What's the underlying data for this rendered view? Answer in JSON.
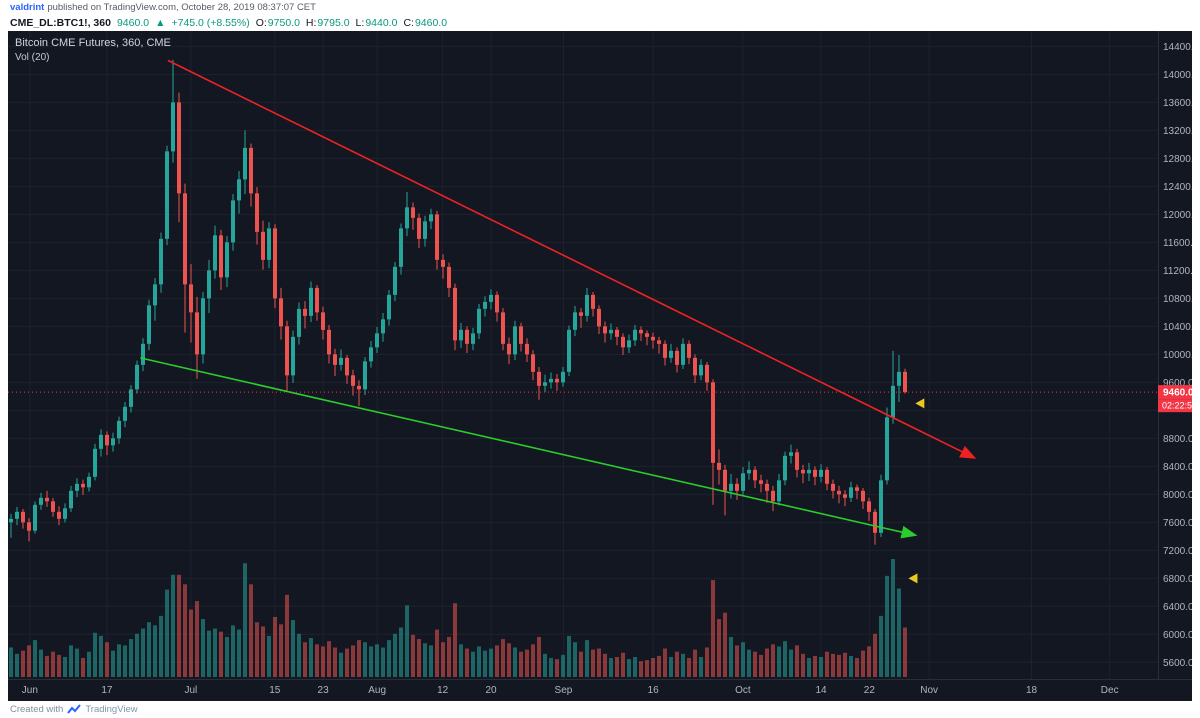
{
  "publish_bar": {
    "username": "valdrint",
    "text": "published on TradingView.com, October 28, 2019 08:37:07 CET"
  },
  "symbol_bar": {
    "symbol_interval": "CME_DL:BTC1!, 360",
    "last": "9460.0",
    "arrow": "▲",
    "change": "+745.0 (+8.55%)",
    "ohlc": [
      {
        "label": "O:",
        "value": "9750.0"
      },
      {
        "label": "H:",
        "value": "9795.0"
      },
      {
        "label": "L:",
        "value": "9440.0"
      },
      {
        "label": "C:",
        "value": "9460.0"
      }
    ]
  },
  "legend": {
    "title": "Bitcoin CME Futures, 360, CME",
    "indicator": "Vol (20)"
  },
  "price_axis": {
    "labels": [
      14400,
      14000,
      13600,
      13200,
      12800,
      12400,
      12000,
      11600,
      11200,
      10800,
      10400,
      10000,
      9600,
      9200,
      8800,
      8400,
      8000,
      7600,
      7200,
      6800,
      6400,
      6000,
      5600
    ],
    "last_price": "9460.0",
    "countdown": "02:22:56"
  },
  "time_axis": [
    {
      "label": "Jun",
      "f": 0.019
    },
    {
      "label": "17",
      "f": 0.086
    },
    {
      "label": "Jul",
      "f": 0.159
    },
    {
      "label": "15",
      "f": 0.232
    },
    {
      "label": "23",
      "f": 0.274
    },
    {
      "label": "Aug",
      "f": 0.321
    },
    {
      "label": "12",
      "f": 0.378
    },
    {
      "label": "20",
      "f": 0.42
    },
    {
      "label": "Sep",
      "f": 0.483
    },
    {
      "label": "16",
      "f": 0.561
    },
    {
      "label": "Oct",
      "f": 0.639
    },
    {
      "label": "14",
      "f": 0.707
    },
    {
      "label": "22",
      "f": 0.749
    },
    {
      "label": "Nov",
      "f": 0.801
    },
    {
      "label": "18",
      "f": 0.89
    },
    {
      "label": "Dec",
      "f": 0.958
    }
  ],
  "footer": {
    "created_with": "Created with",
    "brand": "TradingView"
  },
  "colors": {
    "up": "#26a69a",
    "down": "#ef5350",
    "vol_up": "rgba(38,166,154,0.55)",
    "vol_down": "rgba(239,83,80,0.55)",
    "bg": "#131722",
    "grid": "#1e222d",
    "axis_text": "#b2b5be",
    "axis_border": "#2a2e39",
    "last_bg": "#f23645",
    "marker": "#edc71e",
    "link": "#2962ff",
    "value_green": "#089981"
  },
  "chart_data": {
    "type": "candlestick",
    "symbol": "CME_DL:BTC1!",
    "title": "Bitcoin CME Futures, 360, CME",
    "interval_minutes": 360,
    "price_range": [
      5390,
      14620
    ],
    "grid_step": 400,
    "last_price": 9460,
    "volume_max": 112,
    "volume_label": "Vol (20)",
    "candles": [
      [
        7600,
        7720,
        7380,
        7650,
        28
      ],
      [
        7650,
        7820,
        7560,
        7750,
        22
      ],
      [
        7750,
        7790,
        7510,
        7600,
        25
      ],
      [
        7600,
        7660,
        7330,
        7480,
        30
      ],
      [
        7480,
        7900,
        7440,
        7850,
        35
      ],
      [
        7850,
        8020,
        7780,
        7950,
        26
      ],
      [
        7950,
        8050,
        7820,
        7900,
        20
      ],
      [
        7900,
        7950,
        7680,
        7750,
        24
      ],
      [
        7750,
        7830,
        7560,
        7650,
        21
      ],
      [
        7650,
        7870,
        7600,
        7800,
        19
      ],
      [
        7800,
        8120,
        7750,
        8050,
        30
      ],
      [
        8050,
        8230,
        7960,
        8150,
        27
      ],
      [
        8150,
        8210,
        7990,
        8100,
        18
      ],
      [
        8100,
        8310,
        8040,
        8250,
        24
      ],
      [
        8250,
        8720,
        8200,
        8650,
        42
      ],
      [
        8650,
        8930,
        8540,
        8850,
        39
      ],
      [
        8850,
        8900,
        8560,
        8700,
        33
      ],
      [
        8700,
        8880,
        8610,
        8800,
        25
      ],
      [
        8800,
        9110,
        8720,
        9050,
        31
      ],
      [
        9050,
        9320,
        8960,
        9250,
        30
      ],
      [
        9250,
        9560,
        9170,
        9500,
        36
      ],
      [
        9500,
        9910,
        9440,
        9850,
        41
      ],
      [
        9850,
        10230,
        9760,
        10150,
        46
      ],
      [
        10150,
        10780,
        10060,
        10700,
        52
      ],
      [
        10700,
        11090,
        10480,
        11000,
        49
      ],
      [
        11000,
        11740,
        10880,
        11650,
        58
      ],
      [
        11650,
        12980,
        11560,
        12900,
        83
      ],
      [
        12900,
        14210,
        12740,
        13600,
        97
      ],
      [
        13600,
        13740,
        11890,
        12300,
        97
      ],
      [
        12300,
        12440,
        10310,
        11000,
        88
      ],
      [
        11000,
        11290,
        10170,
        10600,
        64
      ],
      [
        10600,
        10820,
        9650,
        10000,
        72
      ],
      [
        10000,
        10890,
        9870,
        10800,
        55
      ],
      [
        10800,
        11350,
        10590,
        11200,
        44
      ],
      [
        11200,
        11840,
        11080,
        11700,
        46
      ],
      [
        11700,
        11780,
        10920,
        11100,
        43
      ],
      [
        11100,
        11690,
        10960,
        11600,
        38
      ],
      [
        11600,
        12290,
        11480,
        12200,
        49
      ],
      [
        12200,
        12620,
        12010,
        12500,
        45
      ],
      [
        12500,
        13200,
        12290,
        12950,
        108
      ],
      [
        12950,
        13010,
        12110,
        12300,
        88
      ],
      [
        12300,
        12390,
        11570,
        11750,
        52
      ],
      [
        11750,
        11910,
        11210,
        11350,
        48
      ],
      [
        11350,
        11890,
        11230,
        11800,
        39
      ],
      [
        11800,
        11860,
        10660,
        10800,
        57
      ],
      [
        10800,
        10950,
        10210,
        10400,
        50
      ],
      [
        10400,
        10480,
        9480,
        9700,
        78
      ],
      [
        9700,
        10340,
        9590,
        10250,
        54
      ],
      [
        10250,
        10740,
        10140,
        10650,
        41
      ],
      [
        10650,
        10760,
        10370,
        10550,
        33
      ],
      [
        10550,
        11040,
        10460,
        10950,
        37
      ],
      [
        10950,
        10990,
        10480,
        10600,
        31
      ],
      [
        10600,
        10680,
        10210,
        10350,
        29
      ],
      [
        10350,
        10420,
        9870,
        10000,
        34
      ],
      [
        10000,
        10080,
        9690,
        9850,
        28
      ],
      [
        9850,
        10070,
        9770,
        9950,
        23
      ],
      [
        9950,
        9990,
        9580,
        9700,
        27
      ],
      [
        9700,
        9780,
        9410,
        9550,
        30
      ],
      [
        9550,
        9630,
        9260,
        9500,
        35
      ],
      [
        9500,
        9960,
        9420,
        9900,
        33
      ],
      [
        9900,
        10190,
        9810,
        10100,
        29
      ],
      [
        10100,
        10390,
        10020,
        10300,
        31
      ],
      [
        10300,
        10590,
        10180,
        10500,
        28
      ],
      [
        10500,
        10920,
        10410,
        10850,
        35
      ],
      [
        10850,
        11320,
        10760,
        11250,
        41
      ],
      [
        11250,
        11870,
        11140,
        11800,
        47
      ],
      [
        11800,
        12320,
        11690,
        12100,
        68
      ],
      [
        12100,
        12170,
        11780,
        11950,
        40
      ],
      [
        11950,
        12010,
        11520,
        11650,
        36
      ],
      [
        11650,
        11980,
        11540,
        11900,
        32
      ],
      [
        11900,
        12080,
        11790,
        12000,
        30
      ],
      [
        12000,
        12050,
        11210,
        11350,
        45
      ],
      [
        11350,
        11430,
        11080,
        11250,
        33
      ],
      [
        11250,
        11310,
        10820,
        10950,
        38
      ],
      [
        10950,
        11010,
        10060,
        10200,
        70
      ],
      [
        10200,
        10450,
        10090,
        10350,
        31
      ],
      [
        10350,
        10400,
        10020,
        10150,
        27
      ],
      [
        10150,
        10380,
        10060,
        10300,
        24
      ],
      [
        10300,
        10720,
        10220,
        10650,
        29
      ],
      [
        10650,
        10830,
        10540,
        10750,
        25
      ],
      [
        10750,
        10930,
        10640,
        10850,
        27
      ],
      [
        10850,
        10900,
        10470,
        10600,
        30
      ],
      [
        10600,
        10660,
        10060,
        10150,
        36
      ],
      [
        10150,
        10240,
        9860,
        10000,
        32
      ],
      [
        10000,
        10480,
        9920,
        10400,
        28
      ],
      [
        10400,
        10450,
        10040,
        10150,
        24
      ],
      [
        10150,
        10230,
        9890,
        10000,
        26
      ],
      [
        10000,
        10060,
        9630,
        9750,
        31
      ],
      [
        9750,
        9820,
        9350,
        9550,
        38
      ],
      [
        9550,
        9710,
        9460,
        9600,
        22
      ],
      [
        9600,
        9740,
        9510,
        9650,
        18
      ],
      [
        9650,
        9720,
        9480,
        9600,
        17
      ],
      [
        9600,
        9820,
        9540,
        9750,
        21
      ],
      [
        9750,
        10410,
        9690,
        10350,
        39
      ],
      [
        10350,
        10690,
        10260,
        10600,
        33
      ],
      [
        10600,
        10660,
        10380,
        10550,
        24
      ],
      [
        10550,
        10950,
        10470,
        10850,
        35
      ],
      [
        10850,
        10890,
        10540,
        10650,
        26
      ],
      [
        10650,
        10700,
        10290,
        10400,
        27
      ],
      [
        10400,
        10470,
        10170,
        10300,
        22
      ],
      [
        10300,
        10440,
        10210,
        10350,
        18
      ],
      [
        10350,
        10390,
        10130,
        10250,
        19
      ],
      [
        10250,
        10300,
        9990,
        10100,
        23
      ],
      [
        10100,
        10280,
        10020,
        10200,
        17
      ],
      [
        10200,
        10420,
        10120,
        10350,
        19
      ],
      [
        10350,
        10400,
        10190,
        10300,
        15
      ],
      [
        10300,
        10340,
        10130,
        10250,
        16
      ],
      [
        10250,
        10310,
        10080,
        10200,
        18
      ],
      [
        10200,
        10250,
        10010,
        10150,
        20
      ],
      [
        10150,
        10200,
        9840,
        9950,
        27
      ],
      [
        9950,
        10150,
        9880,
        10050,
        19
      ],
      [
        10050,
        10100,
        9740,
        9850,
        24
      ],
      [
        9850,
        10230,
        9790,
        10150,
        22
      ],
      [
        10150,
        10200,
        9860,
        9950,
        18
      ],
      [
        9950,
        10000,
        9590,
        9700,
        26
      ],
      [
        9700,
        9930,
        9630,
        9850,
        19
      ],
      [
        9850,
        9890,
        9480,
        9600,
        28
      ],
      [
        9600,
        9640,
        7850,
        8450,
        92
      ],
      [
        8450,
        8640,
        8140,
        8350,
        55
      ],
      [
        8350,
        8420,
        7700,
        8050,
        61
      ],
      [
        8050,
        8290,
        7940,
        8150,
        38
      ],
      [
        8150,
        8230,
        7920,
        8050,
        30
      ],
      [
        8050,
        8390,
        7980,
        8300,
        33
      ],
      [
        8300,
        8470,
        8210,
        8350,
        26
      ],
      [
        8350,
        8400,
        8090,
        8200,
        24
      ],
      [
        8200,
        8280,
        8030,
        8150,
        21
      ],
      [
        8150,
        8210,
        7880,
        8050,
        27
      ],
      [
        8050,
        8120,
        7760,
        7900,
        31
      ],
      [
        7900,
        8290,
        7840,
        8200,
        29
      ],
      [
        8200,
        8610,
        8130,
        8550,
        34
      ],
      [
        8550,
        8710,
        8440,
        8600,
        26
      ],
      [
        8600,
        8650,
        8240,
        8350,
        30
      ],
      [
        8350,
        8420,
        8160,
        8300,
        22
      ],
      [
        8300,
        8450,
        8190,
        8350,
        18
      ],
      [
        8350,
        8400,
        8130,
        8250,
        20
      ],
      [
        8250,
        8430,
        8170,
        8350,
        19
      ],
      [
        8350,
        8390,
        8060,
        8150,
        24
      ],
      [
        8150,
        8210,
        7940,
        8050,
        22
      ],
      [
        8050,
        8120,
        7870,
        8000,
        21
      ],
      [
        8000,
        8060,
        7830,
        7950,
        23
      ],
      [
        7950,
        8180,
        7890,
        8100,
        20
      ],
      [
        8100,
        8140,
        7930,
        8050,
        18
      ],
      [
        8050,
        8090,
        7790,
        7900,
        25
      ],
      [
        7900,
        7950,
        7620,
        7750,
        29
      ],
      [
        7750,
        7790,
        7280,
        7450,
        41
      ],
      [
        7450,
        8280,
        7390,
        8200,
        58
      ],
      [
        8200,
        9240,
        8140,
        9100,
        96
      ],
      [
        9100,
        10050,
        9010,
        9550,
        112
      ],
      [
        9550,
        9990,
        9320,
        9750,
        84
      ],
      [
        9750,
        9795,
        9440,
        9460,
        47
      ]
    ],
    "trendlines": [
      {
        "name": "resistance",
        "color": "#ef2222",
        "x1f": 0.139,
        "p1": 14200,
        "x2f": 0.832,
        "p2": 8590
      },
      {
        "name": "support",
        "color": "#2bcc2b",
        "x1f": 0.115,
        "p1": 9950,
        "x2f": 0.78,
        "p2": 7450
      }
    ],
    "markers": [
      {
        "x_f": 0.789,
        "price": 9300
      },
      {
        "x_f": 0.783,
        "price": 6800
      }
    ]
  }
}
